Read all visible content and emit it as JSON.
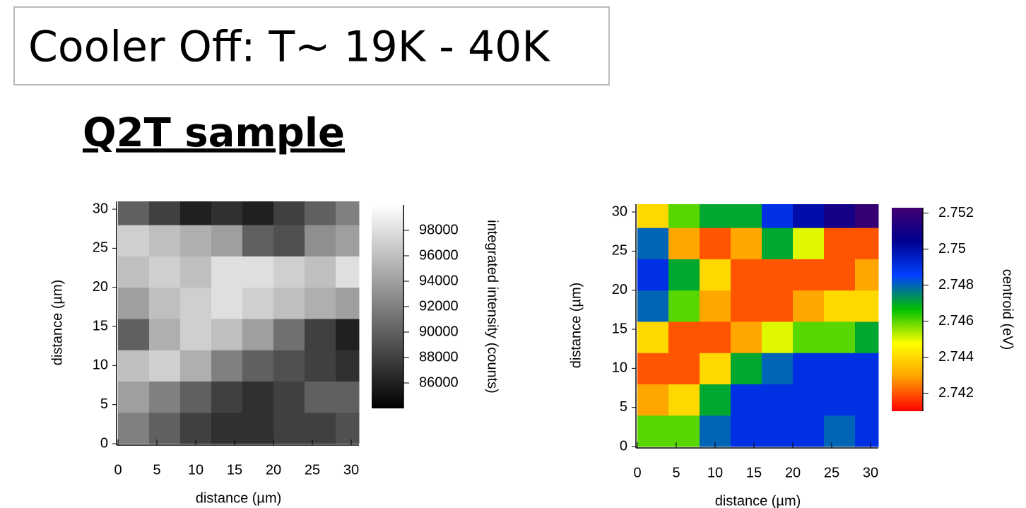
{
  "header": {
    "title": "Cooler Off: T~ 19K - 40K",
    "subtitle": "Q2T sample"
  },
  "chart_data": [
    {
      "type": "heatmap",
      "xlabel": "distance  (µm)",
      "ylabel": "distance  (µm)",
      "colorbar_label": "integrated intensity  (counts)",
      "xlim": [
        0,
        31
      ],
      "ylim": [
        0,
        31
      ],
      "xticks": [
        0,
        5,
        10,
        15,
        20,
        25,
        30
      ],
      "yticks": [
        0,
        5,
        10,
        15,
        20,
        25,
        30
      ],
      "xbins": [
        0,
        4,
        8,
        12,
        16,
        20,
        24,
        28,
        31
      ],
      "ybins": [
        0,
        4,
        8,
        12,
        16,
        20,
        24,
        28,
        31
      ],
      "z": [
        [
          92000,
          90000,
          88000,
          87000,
          87000,
          88000,
          88000,
          89000
        ],
        [
          94000,
          92000,
          90000,
          88000,
          87000,
          88000,
          90000,
          90000
        ],
        [
          96000,
          97000,
          95000,
          92000,
          90000,
          89000,
          88000,
          87000
        ],
        [
          90000,
          95000,
          97000,
          96000,
          94000,
          91000,
          88000,
          86000
        ],
        [
          94000,
          96000,
          97000,
          98000,
          97000,
          96000,
          95000,
          94000
        ],
        [
          96000,
          97000,
          96000,
          98000,
          98000,
          97000,
          96000,
          98000
        ],
        [
          97000,
          96000,
          95000,
          94000,
          90000,
          89000,
          93000,
          94000
        ],
        [
          90000,
          88000,
          86000,
          87000,
          86000,
          88000,
          90000,
          92000
        ]
      ],
      "zlim": [
        84000,
        100000
      ],
      "zticks": [
        86000,
        88000,
        90000,
        92000,
        94000,
        96000,
        98000
      ],
      "colormap": [
        "#000000",
        "#ffffff"
      ]
    },
    {
      "type": "heatmap",
      "xlabel": "distance  (µm)",
      "ylabel": "distance  (µm)",
      "colorbar_label": "centroid  (eV)",
      "xlim": [
        0,
        31
      ],
      "ylim": [
        0,
        31
      ],
      "xticks": [
        0,
        5,
        10,
        15,
        20,
        25,
        30
      ],
      "yticks": [
        0,
        5,
        10,
        15,
        20,
        25,
        30
      ],
      "xbins": [
        0,
        4,
        8,
        12,
        16,
        20,
        24,
        28,
        31
      ],
      "ybins": [
        0,
        4,
        8,
        12,
        16,
        20,
        24,
        28,
        31
      ],
      "z": [
        [
          2.746,
          2.746,
          2.748,
          2.749,
          2.749,
          2.749,
          2.748,
          2.749
        ],
        [
          2.743,
          2.744,
          2.747,
          2.749,
          2.749,
          2.749,
          2.749,
          2.749
        ],
        [
          2.742,
          2.742,
          2.744,
          2.747,
          2.748,
          2.749,
          2.749,
          2.749
        ],
        [
          2.744,
          2.742,
          2.742,
          2.743,
          2.745,
          2.746,
          2.746,
          2.747
        ],
        [
          2.748,
          2.746,
          2.743,
          2.742,
          2.742,
          2.743,
          2.744,
          2.744
        ],
        [
          2.749,
          2.747,
          2.744,
          2.742,
          2.742,
          2.742,
          2.742,
          2.743
        ],
        [
          2.748,
          2.743,
          2.742,
          2.743,
          2.747,
          2.745,
          2.742,
          2.742
        ],
        [
          2.744,
          2.746,
          2.747,
          2.747,
          2.749,
          2.75,
          2.751,
          2.752
        ]
      ],
      "zlim": [
        2.741,
        2.7523
      ],
      "zticks": [
        2.742,
        2.744,
        2.746,
        2.748,
        2.75,
        2.752
      ],
      "colormap": [
        "#ff0000",
        "#ffa000",
        "#ffff00",
        "#00c000",
        "#0040ff",
        "#000090",
        "#400070"
      ]
    }
  ]
}
